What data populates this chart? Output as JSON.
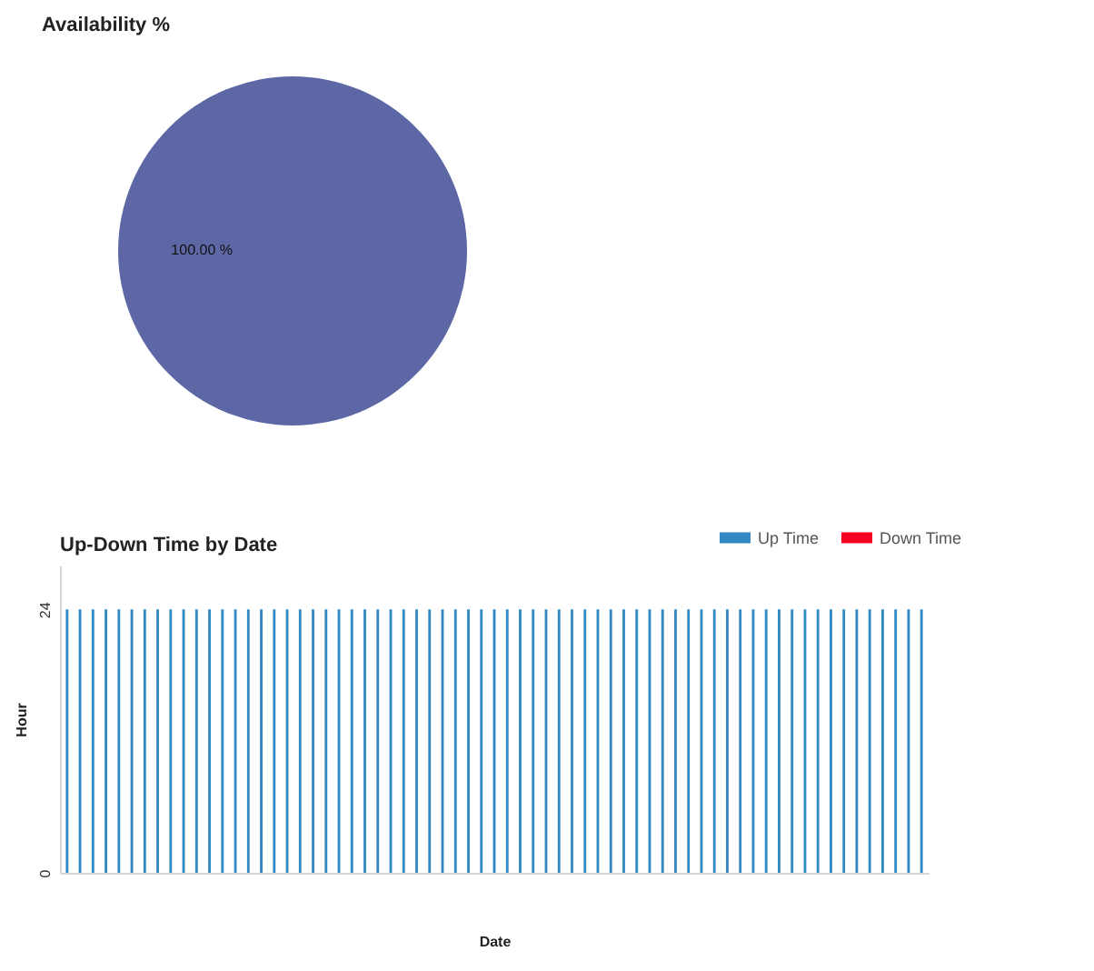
{
  "chart_data": [
    {
      "type": "pie",
      "title": "Availability %",
      "categories": [
        null
      ],
      "values": [
        100
      ],
      "colors": [
        "#5d67a6"
      ],
      "value_labels": [
        "100.00 %"
      ]
    },
    {
      "type": "bar",
      "title": "Up-Down Time by Date",
      "xlabel": "Date",
      "ylabel": "Hour",
      "stacked": true,
      "legend": "top right",
      "ylim": [
        0,
        28
      ],
      "yticks": [
        0,
        24
      ],
      "categories": [
        null,
        null,
        null,
        null,
        null,
        null,
        null,
        null,
        null,
        null,
        null,
        null,
        null,
        null,
        null,
        null,
        null,
        null,
        null,
        null,
        null,
        null,
        null,
        null,
        null,
        null,
        null,
        null,
        null,
        null,
        null,
        null,
        null,
        null,
        null,
        null,
        null,
        null,
        null,
        null,
        null,
        null,
        null,
        null,
        null,
        null,
        null,
        null,
        null,
        null,
        null,
        null,
        null,
        null,
        null,
        null,
        null,
        null,
        null,
        null,
        null,
        null,
        null,
        null,
        null,
        null,
        null
      ],
      "series": [
        {
          "name": "Up Time",
          "color": "#3288c2",
          "values": [
            24,
            24,
            24,
            24,
            24,
            24,
            24,
            24,
            24,
            24,
            24,
            24,
            24,
            24,
            24,
            24,
            24,
            24,
            24,
            24,
            24,
            24,
            24,
            24,
            24,
            24,
            24,
            24,
            24,
            24,
            24,
            24,
            24,
            24,
            24,
            24,
            24,
            24,
            24,
            24,
            24,
            24,
            24,
            24,
            24,
            24,
            24,
            24,
            24,
            24,
            24,
            24,
            24,
            24,
            24,
            24,
            24,
            24,
            24,
            24,
            24,
            24,
            24,
            24,
            24,
            24,
            24
          ]
        },
        {
          "name": "Down Time",
          "color": "#f50022",
          "values": [
            0,
            0,
            0,
            0,
            0,
            0,
            0,
            0,
            0,
            0,
            0,
            0,
            0,
            0,
            0,
            0,
            0,
            0,
            0,
            0,
            0,
            0,
            0,
            0,
            0,
            0,
            0,
            0,
            0,
            0,
            0,
            0,
            0,
            0,
            0,
            0,
            0,
            0,
            0,
            0,
            0,
            0,
            0,
            0,
            0,
            0,
            0,
            0,
            0,
            0,
            0,
            0,
            0,
            0,
            0,
            0,
            0,
            0,
            0,
            0,
            0,
            0,
            0,
            0,
            0,
            0,
            0
          ]
        }
      ]
    }
  ]
}
